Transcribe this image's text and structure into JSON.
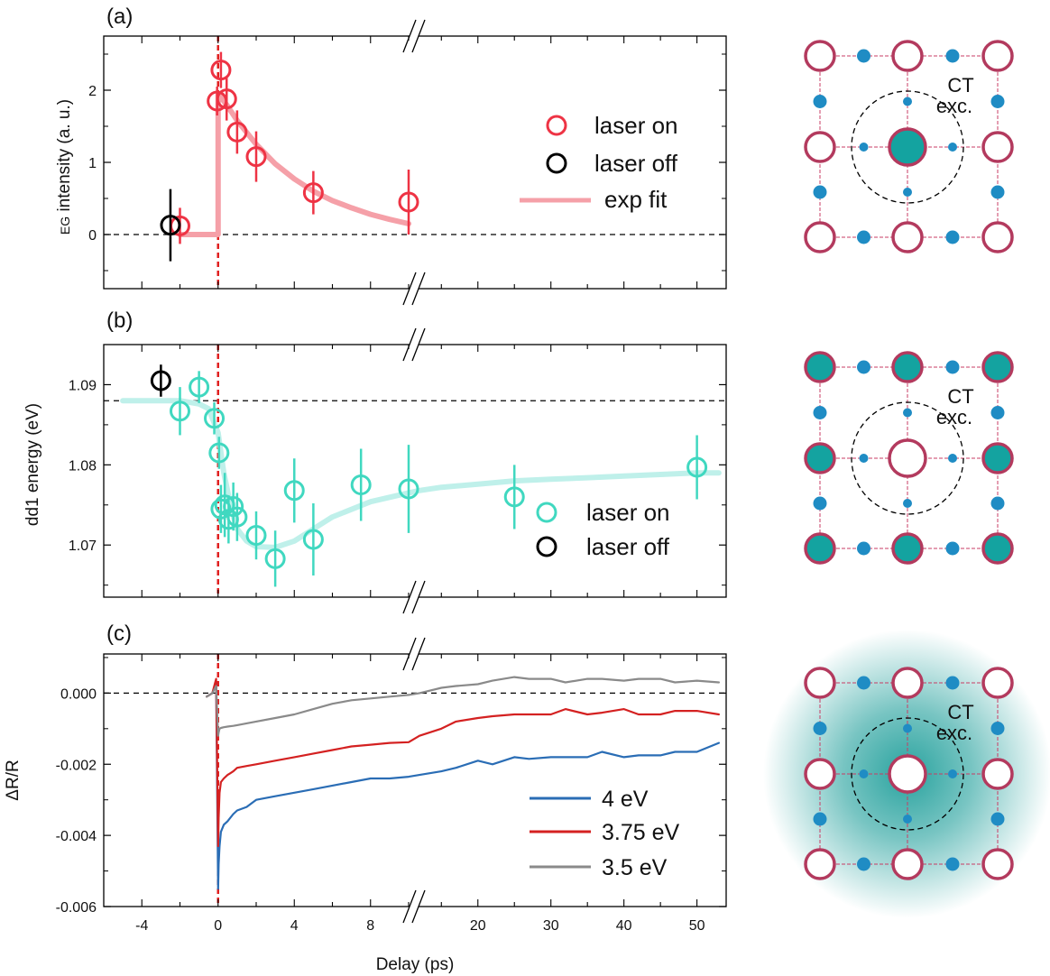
{
  "figure": {
    "xlabel": "Delay (ps)",
    "x_ticks_left": [
      -4,
      0,
      4,
      8
    ],
    "x_ticks_right": [
      20,
      30,
      40,
      50
    ],
    "axis_break": {
      "left_max": 10,
      "right_min": 12
    }
  },
  "chart_data": [
    {
      "panel_label": "(a)",
      "type": "scatter",
      "ylabel_prefix": "EG",
      "ylabel": " intensity (a. u.)",
      "ylim": [
        -0.75,
        2.75
      ],
      "yticks": [
        0,
        1,
        2
      ],
      "ytick_labels": [
        "0",
        "1",
        "2"
      ],
      "baseline": 0,
      "series": [
        {
          "name": "laser on",
          "color": "#ee3344",
          "points": [
            {
              "x": -2,
              "y": 0.12,
              "err": 0.25
            },
            {
              "x": -0.05,
              "y": 1.85,
              "err": 0.2
            },
            {
              "x": 0.15,
              "y": 2.28,
              "err": 0.25
            },
            {
              "x": 0.45,
              "y": 1.88,
              "err": 0.3
            },
            {
              "x": 1.0,
              "y": 1.42,
              "err": 0.3
            },
            {
              "x": 2.0,
              "y": 1.08,
              "err": 0.35
            },
            {
              "x": 5.0,
              "y": 0.58,
              "err": 0.3
            },
            {
              "x": 10.0,
              "y": 0.45,
              "err": 0.45
            }
          ]
        },
        {
          "name": "laser off",
          "color": "#000000",
          "points": [
            {
              "x": -2.5,
              "y": 0.13,
              "err": 0.5
            }
          ]
        },
        {
          "name": "exp fit",
          "color": "#f5a0a8",
          "kind": "fit",
          "x": [
            -2.0,
            -0.3,
            0.0,
            0.0,
            0.5,
            1.0,
            2.0,
            3.0,
            4.0,
            5.0,
            6.0,
            7.0,
            8.0,
            9.0,
            10.0
          ],
          "y": [
            0.0,
            0.0,
            0.0,
            1.95,
            1.78,
            1.58,
            1.25,
            0.98,
            0.77,
            0.6,
            0.47,
            0.37,
            0.28,
            0.21,
            0.15
          ]
        }
      ]
    },
    {
      "panel_label": "(b)",
      "type": "scatter",
      "ylabel": "dd1 energy (eV)",
      "ylim": [
        1.0635,
        1.095
      ],
      "yticks": [
        1.07,
        1.08,
        1.09
      ],
      "ytick_labels": [
        "1.07",
        "1.08",
        "1.09"
      ],
      "baseline": 1.088,
      "series": [
        {
          "name": "laser on",
          "color": "#40d8c0",
          "points": [
            {
              "x": -2.0,
              "y": 1.0867,
              "err": 0.003
            },
            {
              "x": -1.0,
              "y": 1.0897,
              "err": 0.002
            },
            {
              "x": -0.2,
              "y": 1.0858,
              "err": 0.002
            },
            {
              "x": 0.05,
              "y": 1.0815,
              "err": 0.002
            },
            {
              "x": 0.15,
              "y": 1.0745,
              "err": 0.003
            },
            {
              "x": 0.35,
              "y": 1.075,
              "err": 0.004
            },
            {
              "x": 0.55,
              "y": 1.0732,
              "err": 0.003
            },
            {
              "x": 0.8,
              "y": 1.0748,
              "err": 0.003
            },
            {
              "x": 1.0,
              "y": 1.0735,
              "err": 0.003
            },
            {
              "x": 2.0,
              "y": 1.0712,
              "err": 0.003
            },
            {
              "x": 3.0,
              "y": 1.0683,
              "err": 0.0035
            },
            {
              "x": 4.0,
              "y": 1.0768,
              "err": 0.004
            },
            {
              "x": 5.0,
              "y": 1.0707,
              "err": 0.0045
            },
            {
              "x": 7.5,
              "y": 1.0775,
              "err": 0.0045
            },
            {
              "x": 10.0,
              "y": 1.077,
              "err": 0.0055
            },
            {
              "x": 25.0,
              "y": 1.076,
              "err": 0.004
            },
            {
              "x": 50.0,
              "y": 1.0797,
              "err": 0.004
            }
          ]
        },
        {
          "name": "laser off",
          "color": "#000000",
          "points": [
            {
              "x": -3.0,
              "y": 1.0905,
              "err": 0.002
            }
          ]
        },
        {
          "name": "fit",
          "color": "#bff0ea",
          "kind": "fit",
          "x": [
            -5.0,
            -2.0,
            -1.0,
            -0.5,
            0.0,
            0.3,
            0.7,
            1.0,
            1.5,
            2.0,
            3.0,
            4.0,
            5.0,
            6.0,
            8.0,
            10.0,
            12.0,
            15.0,
            20.0,
            25.0,
            30.0,
            35.0,
            40.0,
            45.0,
            50.0,
            53.0
          ],
          "y": [
            1.088,
            1.088,
            1.0876,
            1.087,
            1.084,
            1.079,
            1.0745,
            1.072,
            1.0705,
            1.0698,
            1.0697,
            1.0705,
            1.072,
            1.0735,
            1.0754,
            1.0765,
            1.0768,
            1.0772,
            1.0776,
            1.078,
            1.0782,
            1.0784,
            1.0786,
            1.0788,
            1.079,
            1.079
          ]
        }
      ]
    },
    {
      "panel_label": "(c)",
      "type": "line",
      "ylabel": "ΔR/R",
      "ylim": [
        -0.006,
        0.0011
      ],
      "yticks": [
        -0.006,
        -0.004,
        -0.002,
        0.0
      ],
      "ytick_labels": [
        "-0.006",
        "-0.004",
        "-0.002",
        "0.000"
      ],
      "baseline": 0,
      "series": [
        {
          "name": "4 eV",
          "color": "#2a6db5",
          "x": [
            -0.6,
            -0.3,
            -0.1,
            0.0,
            0.03,
            0.08,
            0.15,
            0.3,
            0.5,
            0.8,
            1.0,
            1.5,
            2.0,
            3.0,
            4.0,
            5.0,
            6.0,
            7.0,
            8.0,
            9.0,
            10.0,
            12.0,
            15.0,
            17.0,
            20.0,
            22.0,
            25.0,
            27.0,
            30.0,
            32.0,
            35.0,
            37.0,
            40.0,
            42.0,
            45.0,
            47.0,
            50.0,
            53.0
          ],
          "y": [
            -0.0001,
            0.0,
            0.0003,
            -0.0055,
            -0.0048,
            -0.0043,
            -0.0039,
            -0.0037,
            -0.0036,
            -0.0034,
            -0.0033,
            -0.0032,
            -0.003,
            -0.0029,
            -0.0028,
            -0.0027,
            -0.0026,
            -0.0025,
            -0.0024,
            -0.0024,
            -0.00235,
            -0.0023,
            -0.0022,
            -0.0021,
            -0.0019,
            -0.002,
            -0.0018,
            -0.00185,
            -0.0018,
            -0.0018,
            -0.0018,
            -0.00165,
            -0.0018,
            -0.00175,
            -0.00175,
            -0.00165,
            -0.00165,
            -0.0014
          ]
        },
        {
          "name": "3.75 eV",
          "color": "#d42121",
          "x": [
            -0.6,
            -0.3,
            -0.1,
            0.0,
            0.03,
            0.08,
            0.15,
            0.3,
            0.5,
            0.8,
            1.0,
            1.5,
            2.0,
            3.0,
            4.0,
            5.0,
            6.0,
            7.0,
            8.0,
            9.0,
            10.0,
            12.0,
            15.0,
            17.0,
            20.0,
            22.0,
            25.0,
            27.0,
            30.0,
            32.0,
            35.0,
            37.0,
            40.0,
            42.0,
            45.0,
            47.0,
            50.0,
            53.0
          ],
          "y": [
            -0.0001,
            0.0,
            0.0004,
            -0.0043,
            -0.0035,
            -0.0028,
            -0.0025,
            -0.0024,
            -0.0023,
            -0.0022,
            -0.0021,
            -0.00205,
            -0.002,
            -0.0019,
            -0.0018,
            -0.0017,
            -0.0016,
            -0.0015,
            -0.00145,
            -0.0014,
            -0.00138,
            -0.0012,
            -0.001,
            -0.0008,
            -0.0007,
            -0.00065,
            -0.0006,
            -0.0006,
            -0.0006,
            -0.00045,
            -0.0006,
            -0.00055,
            -0.00045,
            -0.0006,
            -0.0006,
            -0.0005,
            -0.0005,
            -0.0006
          ]
        },
        {
          "name": "3.5 eV",
          "color": "#8a8a8a",
          "x": [
            -0.6,
            -0.3,
            -0.1,
            0.0,
            0.03,
            0.08,
            0.15,
            0.3,
            0.5,
            0.8,
            1.0,
            1.5,
            2.0,
            3.0,
            4.0,
            5.0,
            6.0,
            7.0,
            8.0,
            9.0,
            10.0,
            12.0,
            15.0,
            17.0,
            20.0,
            22.0,
            25.0,
            27.0,
            30.0,
            32.0,
            35.0,
            37.0,
            40.0,
            42.0,
            45.0,
            47.0,
            50.0,
            53.0
          ],
          "y": [
            -0.0001,
            0.0,
            0.0002,
            -0.0012,
            -0.0011,
            -0.001,
            -0.00098,
            -0.00096,
            -0.00094,
            -0.00092,
            -0.0009,
            -0.00085,
            -0.0008,
            -0.0007,
            -0.0006,
            -0.00045,
            -0.0003,
            -0.0002,
            -0.00015,
            -0.0001,
            -5e-05,
            0.0,
            0.00015,
            0.0002,
            0.00025,
            0.00035,
            0.00045,
            0.0004,
            0.0004,
            0.0003,
            0.0004,
            0.0004,
            0.00035,
            0.0004,
            0.0004,
            0.0003,
            0.00035,
            0.0003
          ]
        }
      ]
    }
  ],
  "diagrams": [
    {
      "name": "diagram-a",
      "center": "filled",
      "corners": "open",
      "edges": "open",
      "glow": false,
      "label_line1": "CT",
      "label_line2": "exc."
    },
    {
      "name": "diagram-b",
      "center": "open",
      "corners": "filled",
      "edges": "filled",
      "glow": false,
      "label_line1": "CT",
      "label_line2": "exc."
    },
    {
      "name": "diagram-c",
      "center": "open",
      "corners": "open",
      "edges": "open",
      "glow": true,
      "label_line1": "CT",
      "label_line2": "exc."
    }
  ],
  "colors": {
    "lattice_line": "#c83c64",
    "large_ion_stroke": "#b33a5e",
    "small_ion": "#1f8cc4",
    "filled_ion": "#14a3a0",
    "glow": "#1e9e9a",
    "time_zero_line": "#e02020"
  }
}
